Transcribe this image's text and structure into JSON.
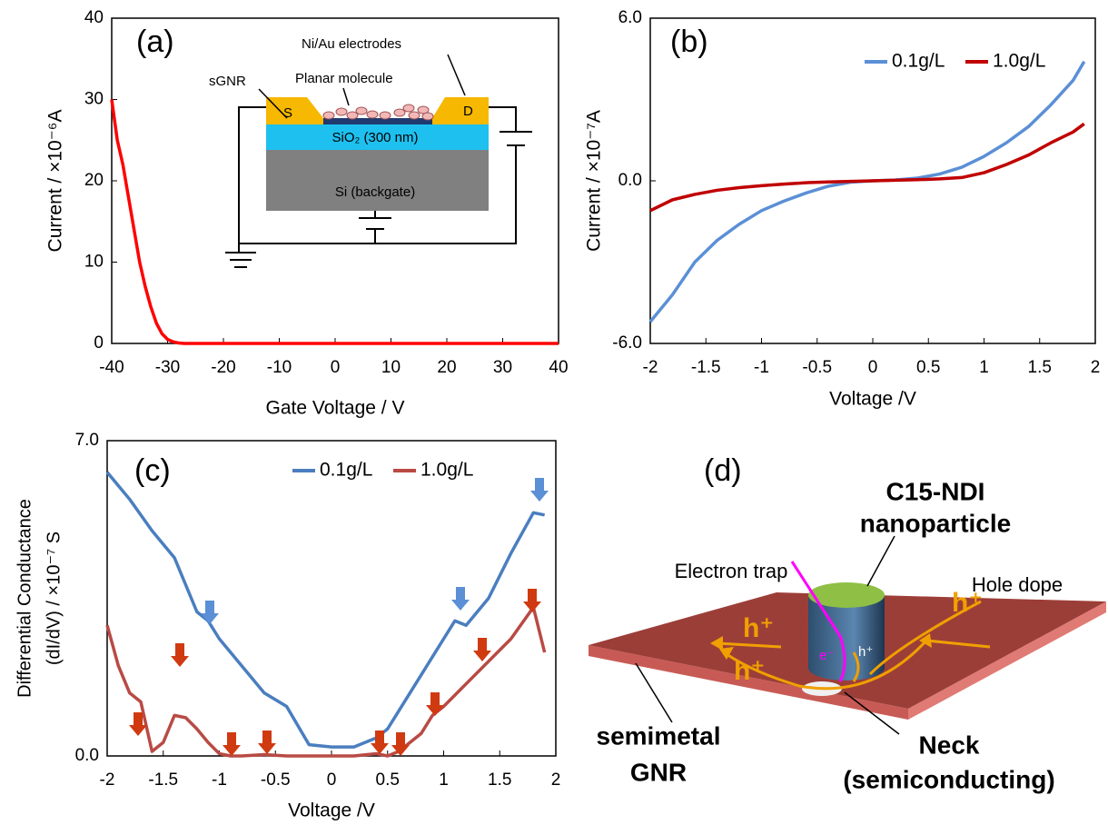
{
  "chart_data": [
    {
      "type": "line",
      "label": "(a)",
      "xlabel": "Gate Voltage / V",
      "ylabel": "Current / ×10⁻⁶A",
      "x": [
        -40,
        -39,
        -38,
        -37,
        -36,
        -35,
        -34,
        -33,
        -32,
        -31,
        -30,
        -29,
        -28,
        -27,
        -20,
        -10,
        0,
        10,
        20,
        30,
        40
      ],
      "series": [
        {
          "color": "#ff0000",
          "values": [
            30,
            25,
            22,
            18,
            14,
            10,
            7,
            4.5,
            2.5,
            1.2,
            0.5,
            0.2,
            0.05,
            0,
            0,
            0,
            0,
            0,
            0,
            0,
            0
          ]
        }
      ],
      "xlim": [
        -40,
        40
      ],
      "xticks": [
        -40,
        -30,
        -20,
        -10,
        0,
        10,
        20,
        30,
        40
      ],
      "ylim": [
        0,
        40
      ],
      "yticks": [
        0,
        10,
        20,
        30,
        40
      ],
      "inset": {
        "electrodes": "Ni/Au electrodes",
        "gnr": "sGNR",
        "molecule": "Planar molecule",
        "source": "S",
        "drain": "D",
        "oxide": "SiO₂ (300 nm)",
        "gate": "Si (backgate)"
      }
    },
    {
      "type": "line",
      "label": "(b)",
      "xlabel": "Voltage /V",
      "ylabel": "Current / ×10⁻⁷A",
      "x": [
        -2,
        -1.8,
        -1.6,
        -1.4,
        -1.2,
        -1,
        -0.8,
        -0.6,
        -0.4,
        -0.2,
        0,
        0.2,
        0.4,
        0.6,
        0.8,
        1,
        1.2,
        1.4,
        1.6,
        1.8,
        1.9
      ],
      "series": [
        {
          "name": "0.1g/L",
          "color": "#5b8fd6",
          "values": [
            -5.2,
            -4.2,
            -3.0,
            -2.2,
            -1.6,
            -1.1,
            -0.75,
            -0.45,
            -0.2,
            -0.05,
            0,
            0.03,
            0.1,
            0.25,
            0.5,
            0.9,
            1.4,
            2.0,
            2.8,
            3.7,
            4.4
          ]
        },
        {
          "name": "1.0g/L",
          "color": "#c00000",
          "values": [
            -1.1,
            -0.7,
            -0.5,
            -0.35,
            -0.25,
            -0.18,
            -0.12,
            -0.07,
            -0.04,
            -0.02,
            0,
            0.02,
            0.04,
            0.07,
            0.12,
            0.3,
            0.6,
            0.95,
            1.4,
            1.8,
            2.1
          ]
        }
      ],
      "xlim": [
        -2,
        2
      ],
      "xticks": [
        -2,
        -1.5,
        -1,
        -0.5,
        0,
        0.5,
        1,
        1.5,
        2
      ],
      "ylim": [
        -6,
        6
      ],
      "yticks": [
        {
          "value": 6,
          "label": "6.0"
        },
        {
          "value": 0,
          "label": "0.0"
        },
        {
          "value": -6,
          "label": "-6.0"
        }
      ]
    },
    {
      "type": "line",
      "label": "(c)",
      "xlabel": "Voltage /V",
      "ylabel": [
        "Differential Conductance",
        "(dI/dV) / ×10⁻⁷ S"
      ],
      "x": [
        -2,
        -1.9,
        -1.8,
        -1.7,
        -1.6,
        -1.5,
        -1.4,
        -1.3,
        -1.2,
        -1.1,
        -1,
        -0.9,
        -0.8,
        -0.6,
        -0.4,
        -0.2,
        0,
        0.2,
        0.4,
        0.5,
        0.6,
        0.8,
        0.9,
        1,
        1.1,
        1.2,
        1.4,
        1.6,
        1.8,
        1.9
      ],
      "series": [
        {
          "name": "0.1g/L",
          "color": "#4a7ebf",
          "values": [
            6.3,
            6.0,
            5.7,
            5.35,
            5.0,
            4.7,
            4.4,
            3.8,
            3.2,
            3.0,
            2.6,
            2.3,
            2.0,
            1.4,
            1.1,
            0.25,
            0.2,
            0.2,
            0.4,
            0.6,
            1.0,
            1.8,
            2.2,
            2.6,
            3.0,
            2.9,
            3.5,
            4.5,
            5.4,
            5.35
          ]
        },
        {
          "name": "1.0g/L",
          "color": "#b94a44",
          "values": [
            2.9,
            2.0,
            1.4,
            1.2,
            0.1,
            0.3,
            0.9,
            0.85,
            0.6,
            0.3,
            0.05,
            0,
            0,
            0.03,
            0,
            0,
            0,
            0,
            0.05,
            0,
            0.1,
            0.5,
            0.9,
            1.1,
            1.35,
            1.6,
            2.1,
            2.6,
            3.3,
            2.3
          ]
        }
      ],
      "xlim": [
        -2,
        2
      ],
      "xticks": [
        -2,
        -1.5,
        -1,
        -0.5,
        0,
        0.5,
        1,
        1.5,
        2
      ],
      "ylim": [
        0,
        7
      ],
      "yticks": [
        {
          "value": 7,
          "label": "7.0"
        },
        {
          "value": 0,
          "label": "0.0"
        }
      ]
    }
  ],
  "diagram": {
    "label": "(d)",
    "particle": [
      "C15-NDI",
      "nanoparticle"
    ],
    "trap": "Electron trap",
    "dope": "Hole dope",
    "hole": "h⁺",
    "electron": "e⁻",
    "sheet": [
      "semimetal",
      "GNR"
    ],
    "neck": [
      "Neck",
      "(semiconducting)"
    ]
  }
}
